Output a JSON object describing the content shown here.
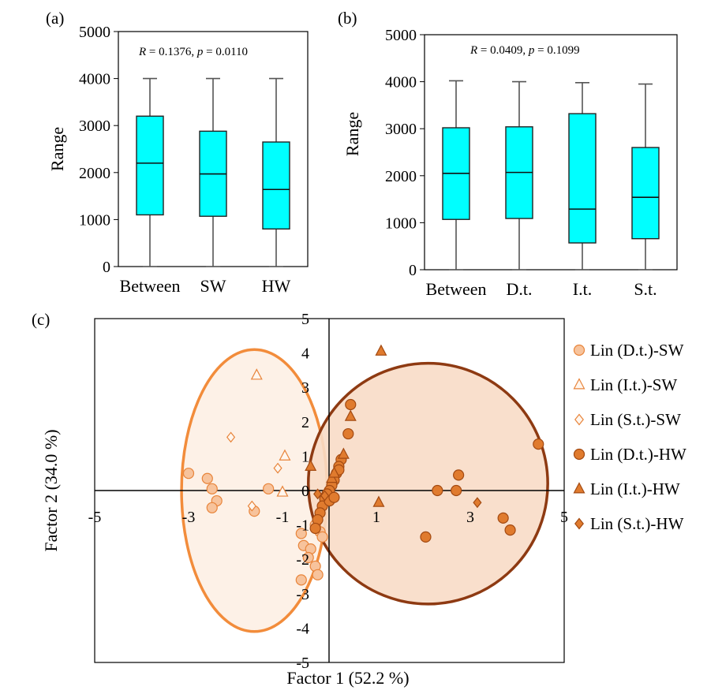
{
  "colors": {
    "box_fill": "#00FFFF",
    "sw_light": "#F7C39C",
    "sw_edge": "#E8843A",
    "hw_fill": "#E07B2E",
    "hw_edge": "#A34A12",
    "sw_ellipse_fill": "#FDEFE4",
    "sw_ellipse_stroke": "#F28C3B",
    "hw_ellipse_fill": "#F8DCC6",
    "hw_ellipse_stroke": "#8E3A12"
  },
  "chart_data": [
    {
      "panel": "(a)",
      "type": "box",
      "ylabel": "Range",
      "ylim": [
        0,
        5000
      ],
      "yticks": [
        "0",
        "1000",
        "2000",
        "3000",
        "4000",
        "5000"
      ],
      "annotation": {
        "r_label": "R",
        "r_text": " = 0.1376, ",
        "p_label": "p",
        "p_text": " = 0.0110"
      },
      "categories": [
        "Between",
        "SW",
        "HW"
      ],
      "boxes": [
        {
          "min": 0,
          "q1": 1100,
          "median": 2200,
          "q3": 3200,
          "max": 4000
        },
        {
          "min": 0,
          "q1": 1070,
          "median": 1970,
          "q3": 2880,
          "max": 4000
        },
        {
          "min": 0,
          "q1": 800,
          "median": 1640,
          "q3": 2650,
          "max": 4000
        }
      ]
    },
    {
      "panel": "(b)",
      "type": "box",
      "ylabel": "Range",
      "ylim": [
        0,
        5000
      ],
      "yticks": [
        "0",
        "1000",
        "2000",
        "3000",
        "4000",
        "5000"
      ],
      "annotation": {
        "r_label": "R",
        "r_text": " = 0.0409, ",
        "p_label": "p",
        "p_text": " = 0.1099"
      },
      "categories": [
        "Between",
        "D.t.",
        "I.t.",
        "S.t."
      ],
      "boxes": [
        {
          "min": 0,
          "q1": 1070,
          "median": 2050,
          "q3": 3020,
          "max": 4020
        },
        {
          "min": 0,
          "q1": 1090,
          "median": 2070,
          "q3": 3040,
          "max": 4000
        },
        {
          "min": 0,
          "q1": 570,
          "median": 1290,
          "q3": 3320,
          "max": 3980
        },
        {
          "min": 0,
          "q1": 660,
          "median": 1540,
          "q3": 2600,
          "max": 3950
        }
      ]
    },
    {
      "panel": "(c)",
      "type": "scatter",
      "xlabel": "Factor  1 (52.2 %)",
      "ylabel": "Factor  2 (34.0 %)",
      "xlim": [
        -5,
        5
      ],
      "ylim": [
        -5,
        5
      ],
      "xticks": [
        "-5",
        "-3",
        "-1",
        "1",
        "3",
        "5"
      ],
      "yticks": [
        "5",
        "4",
        "3",
        "2",
        "1",
        "0",
        "-1",
        "-2",
        "-3",
        "-4",
        "-5"
      ],
      "ellipses": [
        {
          "group": "SW",
          "cx": -1.6,
          "cy": 0.0,
          "rx": 1.55,
          "ry": 4.1
        },
        {
          "group": "HW",
          "cx": 2.1,
          "cy": 0.2,
          "rx": 2.55,
          "ry": 3.5
        }
      ],
      "series": [
        {
          "name": "Lin (D.t.)-SW",
          "marker": "circle",
          "group": "SW",
          "points": [
            [
              -3.0,
              0.5
            ],
            [
              -2.6,
              0.35
            ],
            [
              -2.5,
              0.05
            ],
            [
              -2.4,
              -0.3
            ],
            [
              -2.5,
              -0.5
            ],
            [
              -1.3,
              0.05
            ],
            [
              -1.6,
              -0.6
            ],
            [
              -0.3,
              -1.0
            ],
            [
              -0.2,
              -1.2
            ],
            [
              -0.15,
              -1.35
            ],
            [
              -0.6,
              -1.25
            ],
            [
              -0.55,
              -1.6
            ],
            [
              -0.4,
              -1.7
            ],
            [
              -0.45,
              -1.95
            ],
            [
              -0.3,
              -2.2
            ],
            [
              -0.25,
              -2.45
            ],
            [
              -0.6,
              -2.6
            ]
          ]
        },
        {
          "name": "Lin (I.t.)-SW",
          "marker": "triangle",
          "group": "SW",
          "points": [
            [
              -1.55,
              3.35
            ],
            [
              -0.95,
              1.0
            ],
            [
              -1.0,
              -0.05
            ]
          ]
        },
        {
          "name": "Lin (S.t.)-SW",
          "marker": "diamond",
          "group": "SW",
          "points": [
            [
              -2.1,
              1.55
            ],
            [
              -1.1,
              0.65
            ],
            [
              -1.65,
              -0.45
            ]
          ]
        },
        {
          "name": "Lin (D.t.)-HW",
          "marker": "circle",
          "group": "HW",
          "points": [
            [
              4.45,
              1.35
            ],
            [
              2.75,
              0.45
            ],
            [
              2.3,
              0.0
            ],
            [
              2.7,
              0.0
            ],
            [
              3.7,
              -0.8
            ],
            [
              3.85,
              -1.15
            ],
            [
              2.05,
              -1.35
            ],
            [
              0.45,
              2.5
            ],
            [
              0.4,
              1.65
            ],
            [
              0.25,
              0.9
            ],
            [
              0.2,
              0.7
            ],
            [
              0.15,
              0.5
            ],
            [
              0.1,
              0.3
            ],
            [
              0.05,
              0.15
            ],
            [
              0.0,
              0.0
            ],
            [
              -0.05,
              -0.1
            ],
            [
              -0.1,
              -0.25
            ],
            [
              -0.15,
              -0.45
            ],
            [
              -0.2,
              -0.65
            ],
            [
              -0.25,
              -0.85
            ],
            [
              -0.3,
              -1.1
            ],
            [
              0.2,
              0.6
            ],
            [
              0.0,
              -0.3
            ],
            [
              0.1,
              -0.2
            ]
          ]
        },
        {
          "name": "Lin (I.t.)-HW",
          "marker": "triangle",
          "group": "HW",
          "points": [
            [
              1.1,
              4.05
            ],
            [
              0.45,
              2.15
            ],
            [
              0.3,
              1.05
            ],
            [
              -0.4,
              0.7
            ],
            [
              1.05,
              -0.35
            ],
            [
              0.05,
              0.35
            ],
            [
              0.1,
              0.5
            ]
          ]
        },
        {
          "name": "Lin (S.t.)-HW",
          "marker": "diamond",
          "group": "HW",
          "points": [
            [
              3.15,
              -0.35
            ],
            [
              -0.25,
              -0.1
            ],
            [
              -0.1,
              -0.15
            ]
          ]
        }
      ]
    }
  ]
}
